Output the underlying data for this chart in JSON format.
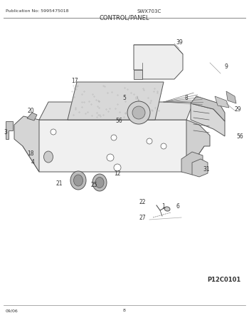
{
  "title": "CONTROL/PANEL",
  "header_left": "Publication No: 5995475018",
  "header_center": "SWX703C",
  "footer_left": "09/06",
  "footer_center": "8",
  "footer_right": "P12C0101",
  "bg_color": "#ffffff",
  "line_color": "#555555",
  "text_color": "#333333",
  "draw_color": "#666666"
}
